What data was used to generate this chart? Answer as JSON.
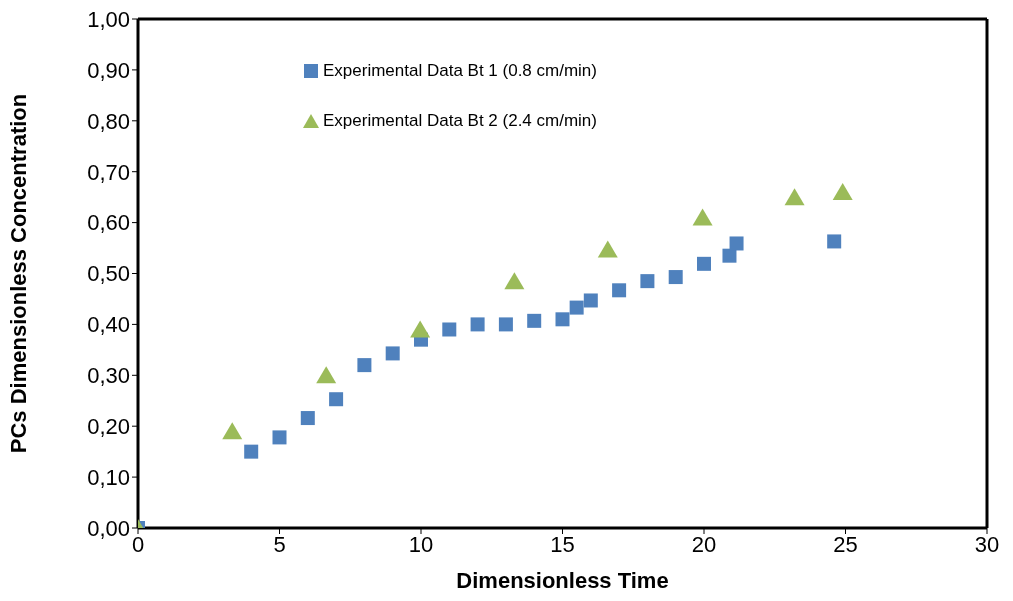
{
  "chart_data": {
    "type": "scatter",
    "xlabel": "Dimensionless Time",
    "ylabel": "PCs Dimensionless Concentration",
    "xlim": [
      0,
      30
    ],
    "xticks": [
      0,
      5,
      10,
      15,
      20,
      25,
      30
    ],
    "ylim": [
      0,
      1
    ],
    "yticks": [
      {
        "value": 0,
        "label": "0,00"
      },
      {
        "value": 0.1,
        "label": "0,10"
      },
      {
        "value": 0.2,
        "label": "0,20"
      },
      {
        "value": 0.3,
        "label": "0,30"
      },
      {
        "value": 0.4,
        "label": "0,40"
      },
      {
        "value": 0.5,
        "label": "0,50"
      },
      {
        "value": 0.6,
        "label": "0,60"
      },
      {
        "value": 0.7,
        "label": "0,70"
      },
      {
        "value": 0.8,
        "label": "0,80"
      },
      {
        "value": 0.9,
        "label": "0,90"
      },
      {
        "value": 1,
        "label": "1,00"
      }
    ],
    "grid": false,
    "legend": "top",
    "series": [
      {
        "name": "Experimental Data Bt 1 (0.8 cm/min)",
        "color": "#4f81bd",
        "marker": "square",
        "x": [
          0,
          4,
          5,
          6,
          7,
          8,
          9,
          10,
          11,
          12,
          13,
          14,
          15,
          15.5,
          16,
          17,
          18,
          19,
          20,
          20.9,
          21.15,
          24.6
        ],
        "values": [
          0,
          0.15,
          0.178,
          0.216,
          0.253,
          0.32,
          0.343,
          0.37,
          0.39,
          0.4,
          0.4,
          0.407,
          0.41,
          0.433,
          0.447,
          0.467,
          0.485,
          0.493,
          0.519,
          0.535,
          0.559,
          0.563
        ]
      },
      {
        "name": "Experimental Data Bt 2 (2.4 cm/min)",
        "color": "#9bbb59",
        "marker": "triangle",
        "x": [
          0,
          3.33,
          6.65,
          9.97,
          13.3,
          16.6,
          19.95,
          23.2,
          24.9
        ],
        "values": [
          0,
          0.19,
          0.3,
          0.39,
          0.485,
          0.547,
          0.61,
          0.65,
          0.66
        ]
      }
    ]
  }
}
